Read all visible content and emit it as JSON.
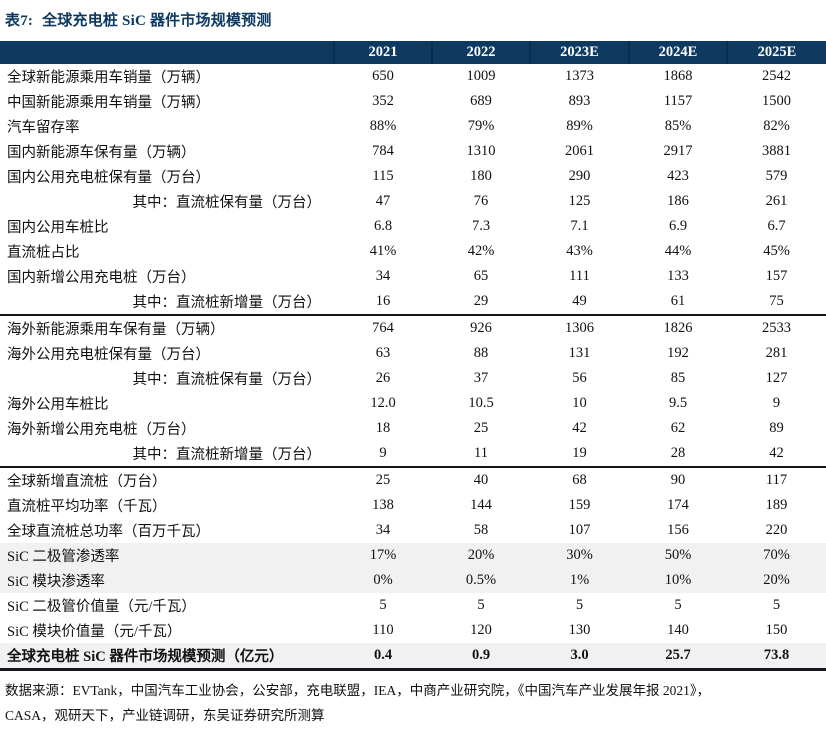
{
  "title": {
    "tag": "表7:",
    "text": "全球充电桩 SiC 器件市场规模预测"
  },
  "colors": {
    "header_bg": "#0e3a62",
    "header_text": "#ffffff",
    "title_text": "#0e3a62",
    "shaded_row_bg": "#f1f1f1",
    "section_divider": "#16161d"
  },
  "table": {
    "columns": [
      "2021",
      "2022",
      "2023E",
      "2024E",
      "2025E"
    ],
    "rows": [
      {
        "label": "全球新能源乘用车销量（万辆）",
        "values": [
          "650",
          "1009",
          "1373",
          "1868",
          "2542"
        ],
        "indent": false,
        "shaded": false,
        "bold": false,
        "section_end": false
      },
      {
        "label": "中国新能源乘用车销量（万辆）",
        "values": [
          "352",
          "689",
          "893",
          "1157",
          "1500"
        ],
        "indent": false,
        "shaded": false,
        "bold": false,
        "section_end": false
      },
      {
        "label": "汽车留存率",
        "values": [
          "88%",
          "79%",
          "89%",
          "85%",
          "82%"
        ],
        "indent": false,
        "shaded": false,
        "bold": false,
        "section_end": false
      },
      {
        "label": "国内新能源车保有量（万辆）",
        "values": [
          "784",
          "1310",
          "2061",
          "2917",
          "3881"
        ],
        "indent": false,
        "shaded": false,
        "bold": false,
        "section_end": false
      },
      {
        "label": "国内公用充电桩保有量（万台）",
        "values": [
          "115",
          "180",
          "290",
          "423",
          "579"
        ],
        "indent": false,
        "shaded": false,
        "bold": false,
        "section_end": false
      },
      {
        "label": "其中：直流桩保有量（万台）",
        "values": [
          "47",
          "76",
          "125",
          "186",
          "261"
        ],
        "indent": true,
        "shaded": false,
        "bold": false,
        "section_end": false
      },
      {
        "label": "国内公用车桩比",
        "values": [
          "6.8",
          "7.3",
          "7.1",
          "6.9",
          "6.7"
        ],
        "indent": false,
        "shaded": false,
        "bold": false,
        "section_end": false
      },
      {
        "label": "直流桩占比",
        "values": [
          "41%",
          "42%",
          "43%",
          "44%",
          "45%"
        ],
        "indent": false,
        "shaded": false,
        "bold": false,
        "section_end": false
      },
      {
        "label": "国内新增公用充电桩（万台）",
        "values": [
          "34",
          "65",
          "111",
          "133",
          "157"
        ],
        "indent": false,
        "shaded": false,
        "bold": false,
        "section_end": false
      },
      {
        "label": "其中：直流桩新增量（万台）",
        "values": [
          "16",
          "29",
          "49",
          "61",
          "75"
        ],
        "indent": true,
        "shaded": false,
        "bold": false,
        "section_end": true
      },
      {
        "label": "海外新能源乘用车保有量（万辆）",
        "values": [
          "764",
          "926",
          "1306",
          "1826",
          "2533"
        ],
        "indent": false,
        "shaded": false,
        "bold": false,
        "section_end": false
      },
      {
        "label": "海外公用充电桩保有量（万台）",
        "values": [
          "63",
          "88",
          "131",
          "192",
          "281"
        ],
        "indent": false,
        "shaded": false,
        "bold": false,
        "section_end": false
      },
      {
        "label": "其中：直流桩保有量（万台）",
        "values": [
          "26",
          "37",
          "56",
          "85",
          "127"
        ],
        "indent": true,
        "shaded": false,
        "bold": false,
        "section_end": false
      },
      {
        "label": "海外公用车桩比",
        "values": [
          "12.0",
          "10.5",
          "10",
          "9.5",
          "9"
        ],
        "indent": false,
        "shaded": false,
        "bold": false,
        "section_end": false
      },
      {
        "label": "海外新增公用充电桩（万台）",
        "values": [
          "18",
          "25",
          "42",
          "62",
          "89"
        ],
        "indent": false,
        "shaded": false,
        "bold": false,
        "section_end": false
      },
      {
        "label": "其中：直流桩新增量（万台）",
        "values": [
          "9",
          "11",
          "19",
          "28",
          "42"
        ],
        "indent": true,
        "shaded": false,
        "bold": false,
        "section_end": true
      },
      {
        "label": "全球新增直流桩（万台）",
        "values": [
          "25",
          "40",
          "68",
          "90",
          "117"
        ],
        "indent": false,
        "shaded": false,
        "bold": false,
        "section_end": false
      },
      {
        "label": "直流桩平均功率（千瓦）",
        "values": [
          "138",
          "144",
          "159",
          "174",
          "189"
        ],
        "indent": false,
        "shaded": false,
        "bold": false,
        "section_end": false
      },
      {
        "label": "全球直流桩总功率（百万千瓦）",
        "values": [
          "34",
          "58",
          "107",
          "156",
          "220"
        ],
        "indent": false,
        "shaded": false,
        "bold": false,
        "section_end": false
      },
      {
        "label": "SiC 二极管渗透率",
        "values": [
          "17%",
          "20%",
          "30%",
          "50%",
          "70%"
        ],
        "indent": false,
        "shaded": true,
        "bold": false,
        "section_end": false
      },
      {
        "label": "SiC 模块渗透率",
        "values": [
          "0%",
          "0.5%",
          "1%",
          "10%",
          "20%"
        ],
        "indent": false,
        "shaded": true,
        "bold": false,
        "section_end": false
      },
      {
        "label": "SiC 二极管价值量（元/千瓦）",
        "values": [
          "5",
          "5",
          "5",
          "5",
          "5"
        ],
        "indent": false,
        "shaded": false,
        "bold": false,
        "section_end": false
      },
      {
        "label": "SiC 模块价值量（元/千瓦）",
        "values": [
          "110",
          "120",
          "130",
          "140",
          "150"
        ],
        "indent": false,
        "shaded": false,
        "bold": false,
        "section_end": false
      },
      {
        "label": "全球充电桩 SiC 器件市场规模预测（亿元）",
        "values": [
          "0.4",
          "0.9",
          "3.0",
          "25.7",
          "73.8"
        ],
        "indent": false,
        "shaded": true,
        "bold": true,
        "section_end": true
      }
    ]
  },
  "footnote": {
    "line1": "数据来源：EVTank，中国汽车工业协会，公安部，充电联盟，IEA，中商产业研究院，《中国汽车产业发展年报 2021》，",
    "line2": "CASA，观研天下，产业链调研，东吴证券研究所测算"
  }
}
